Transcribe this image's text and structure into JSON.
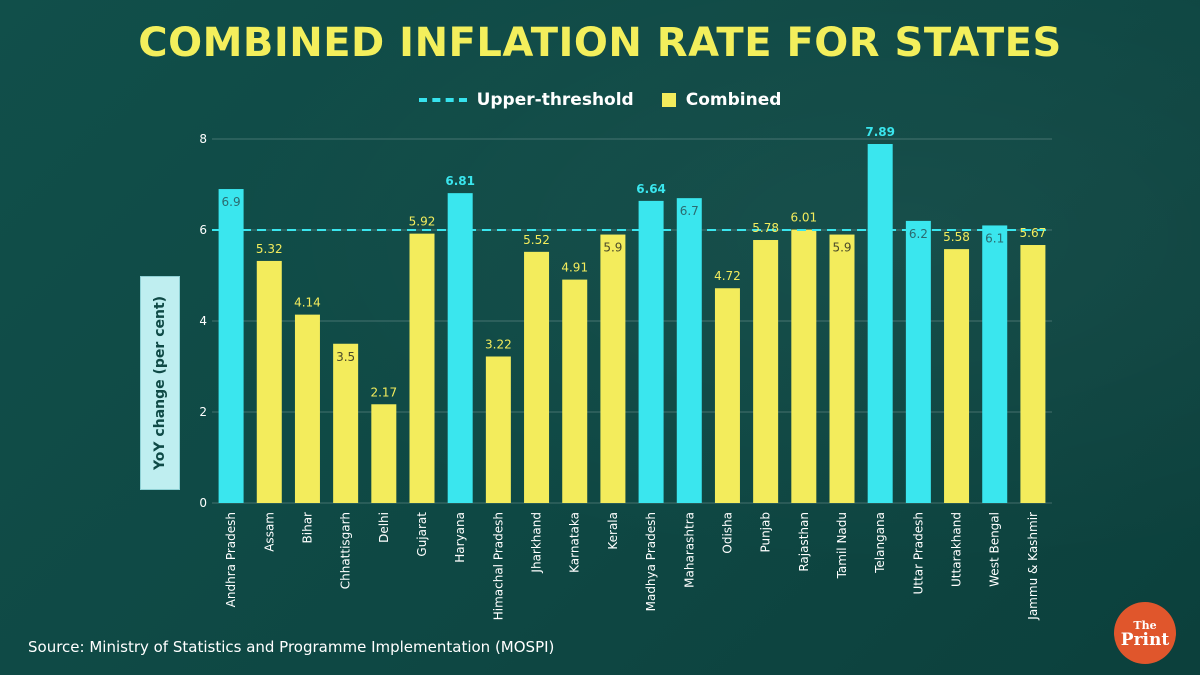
{
  "chart_data": {
    "type": "bar",
    "title": "COMBINED INFLATION RATE FOR STATES",
    "xlabel": "",
    "ylabel": "YoY change (per cent)",
    "ylim": [
      0,
      8
    ],
    "yticks": [
      0,
      2,
      4,
      6,
      8
    ],
    "grid": true,
    "legend_position": "top-center",
    "legend": {
      "threshold_label": "Upper-threshold",
      "combined_label": "Combined"
    },
    "threshold": 6,
    "categories": [
      "Andhra Pradesh",
      "Assam",
      "Bihar",
      "Chhattisgarh",
      "Delhi",
      "Gujarat",
      "Haryana",
      "Himachal Pradesh",
      "Jharkhand",
      "Karnataka",
      "Kerala",
      "Madhya Pradesh",
      "Maharashtra",
      "Odisha",
      "Punjab",
      "Rajasthan",
      "Tamil Nadu",
      "Telangana",
      "Uttar Pradesh",
      "Uttarakhand",
      "West Bengal",
      "Jammu & Kashmir"
    ],
    "values": [
      6.9,
      5.32,
      4.14,
      3.5,
      2.17,
      5.92,
      6.81,
      3.22,
      5.52,
      4.91,
      5.9,
      6.64,
      6.7,
      4.72,
      5.78,
      6.01,
      5.9,
      7.89,
      6.2,
      5.58,
      6.1,
      5.67
    ],
    "value_labels": [
      "6.9",
      "5.32",
      "4.14",
      "3.5",
      "2.17",
      "5.92",
      "6.81",
      "3.22",
      "5.52",
      "4.91",
      "5.9",
      "6.64",
      "6.7",
      "4.72",
      "5.78",
      "6.01",
      "5.9",
      "7.89",
      "6.2",
      "5.58",
      "6.1",
      "5.67"
    ],
    "label_inside": [
      true,
      false,
      false,
      true,
      false,
      false,
      false,
      false,
      false,
      false,
      true,
      false,
      true,
      false,
      false,
      false,
      true,
      false,
      true,
      false,
      true,
      false
    ],
    "highlighted": [
      true,
      false,
      false,
      false,
      false,
      false,
      true,
      false,
      false,
      false,
      false,
      true,
      true,
      false,
      false,
      false,
      false,
      true,
      true,
      false,
      true,
      false
    ]
  },
  "colors": {
    "highlight": "#3ae6ee",
    "normal": "#f3ec5c",
    "title": "#f3ef5c",
    "background": "#0f4a46"
  },
  "source": "Source: Ministry of Statistics and Programme Implementation (MOSPI)",
  "logo": {
    "top": "The",
    "bottom": "Print"
  }
}
